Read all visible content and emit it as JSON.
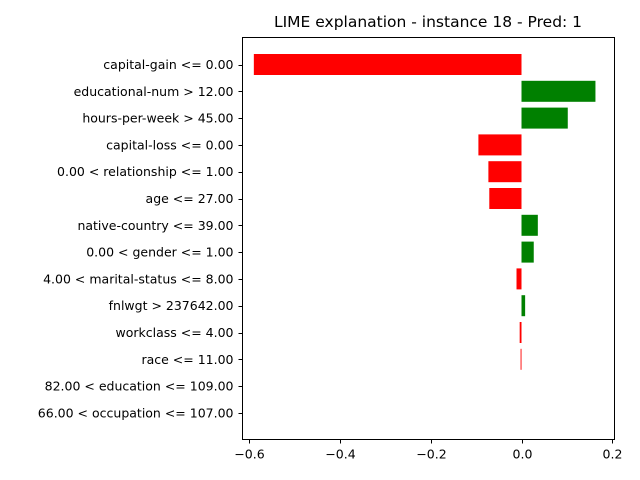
{
  "chart_data": {
    "type": "bar",
    "orientation": "horizontal",
    "title": "LIME explanation - instance 18 - Pred: 1",
    "xlabel": "",
    "ylabel": "",
    "xlim": [
      -0.615,
      0.205
    ],
    "xticks": [
      -0.6,
      -0.4,
      -0.2,
      0.0,
      0.2
    ],
    "xtick_labels": [
      "−0.6",
      "−0.4",
      "−0.2",
      "0.0",
      "0.2"
    ],
    "grid": false,
    "legend": "none",
    "colors": {
      "positive": "#008000",
      "negative": "#ff0000"
    },
    "categories": [
      "capital-gain <= 0.00",
      "educational-num > 12.00",
      "hours-per-week > 45.00",
      "capital-loss <= 0.00",
      "0.00 < relationship <= 1.00",
      "age <= 27.00",
      "native-country <= 39.00",
      "0.00 < gender <= 1.00",
      "4.00 < marital-status <= 8.00",
      "fnlwgt > 237642.00",
      "workclass <= 4.00",
      "race <= 11.00",
      "82.00 < education <= 109.00",
      "66.00 < occupation <= 107.00"
    ],
    "values": [
      -0.59,
      0.163,
      0.102,
      -0.095,
      -0.073,
      -0.071,
      0.036,
      0.027,
      -0.011,
      0.008,
      -0.004,
      -0.002,
      0.0,
      0.0
    ]
  }
}
